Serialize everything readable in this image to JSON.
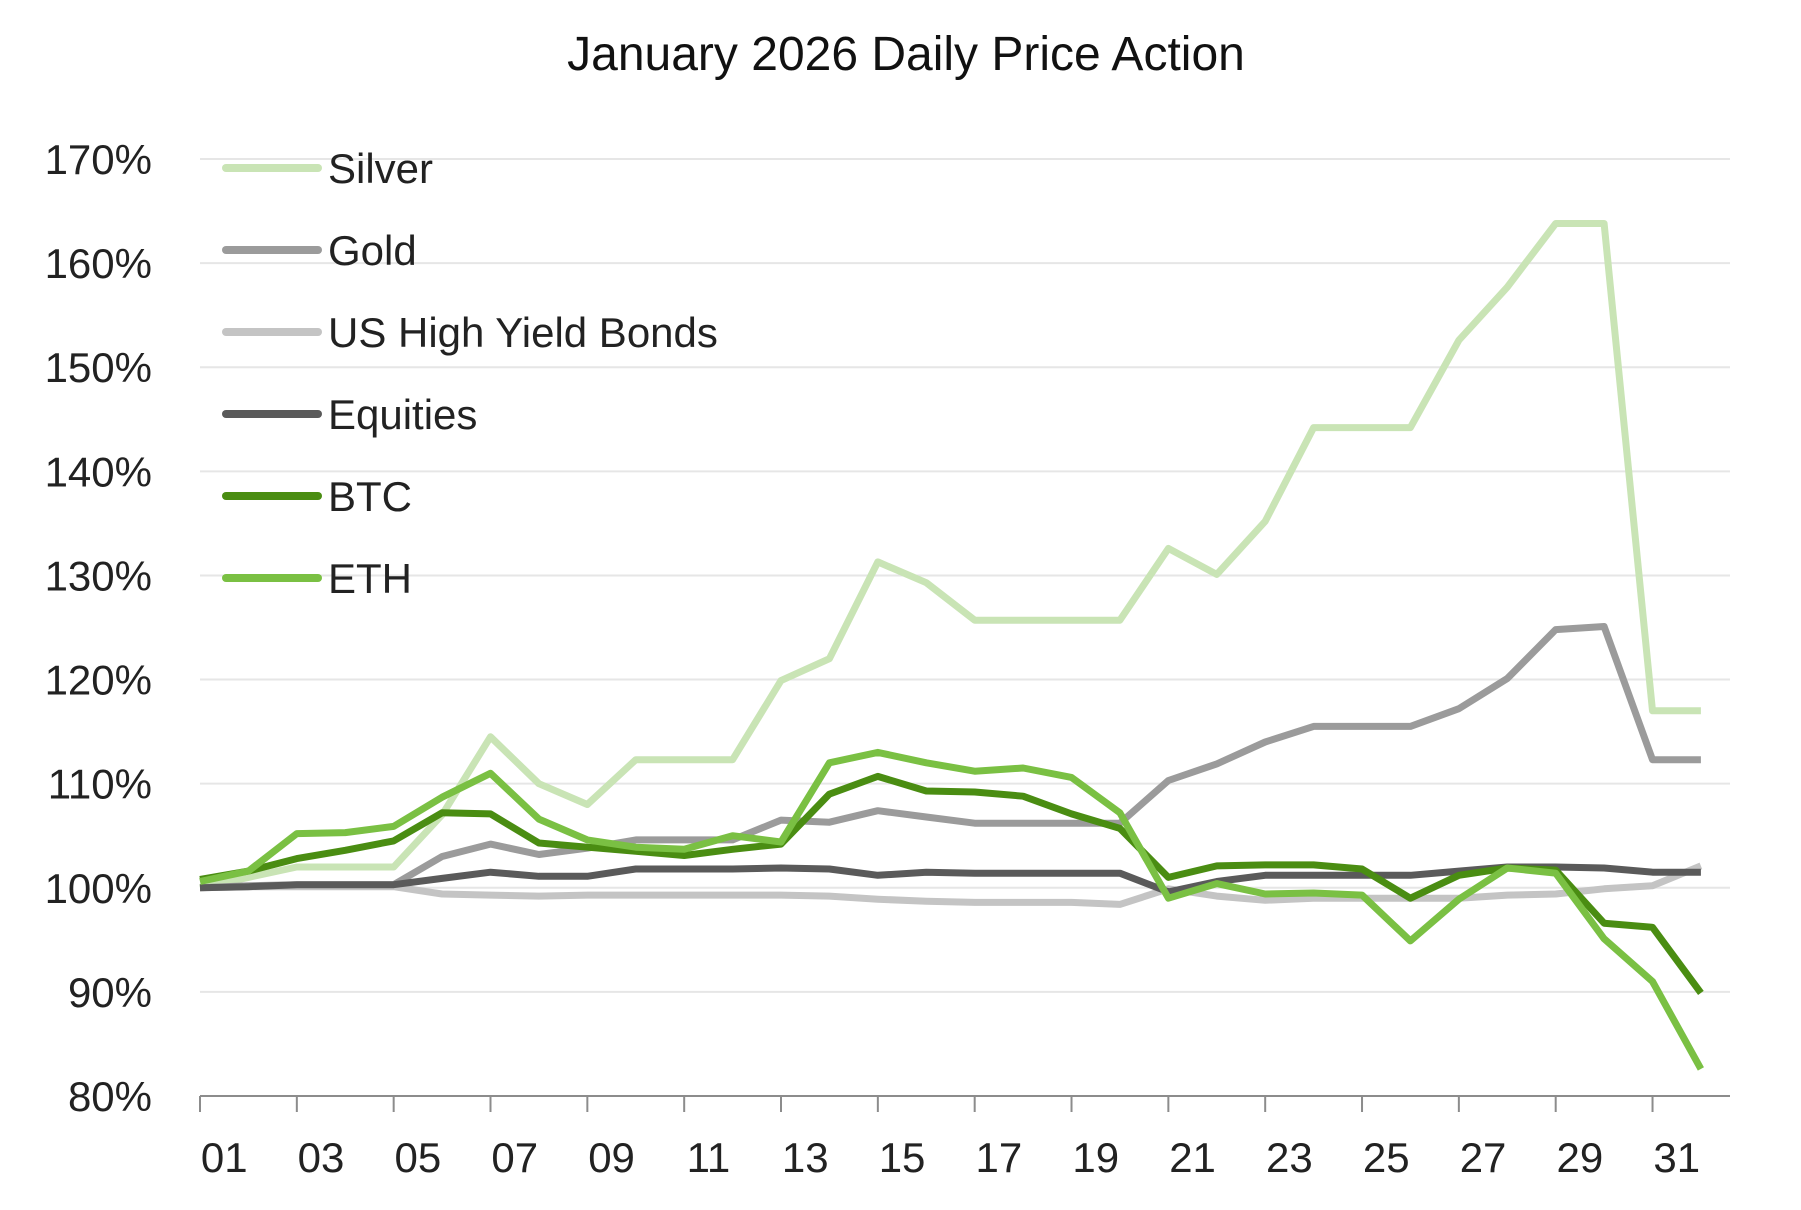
{
  "chart_data": {
    "type": "line",
    "title": "January 2026 Daily Price Action",
    "xlabel": "",
    "ylabel": "",
    "x": [
      1,
      2,
      3,
      4,
      5,
      6,
      7,
      8,
      9,
      10,
      11,
      12,
      13,
      14,
      15,
      16,
      17,
      18,
      19,
      20,
      21,
      22,
      23,
      24,
      25,
      26,
      27,
      28,
      29,
      30,
      31,
      32
    ],
    "x_tick_values": [
      1,
      3,
      5,
      7,
      9,
      11,
      13,
      15,
      17,
      19,
      21,
      23,
      25,
      27,
      29,
      31
    ],
    "x_tick_labels": [
      "01",
      "03",
      "05",
      "07",
      "09",
      "11",
      "13",
      "15",
      "17",
      "19",
      "21",
      "23",
      "25",
      "27",
      "29",
      "31"
    ],
    "xlim": [
      1,
      32.6
    ],
    "ylim": [
      80,
      170
    ],
    "y_ticks": [
      80,
      90,
      100,
      110,
      120,
      130,
      140,
      150,
      160,
      170
    ],
    "y_tick_labels": [
      "80%",
      "90%",
      "100%",
      "110%",
      "120%",
      "130%",
      "140%",
      "150%",
      "160%",
      "170%"
    ],
    "grid": "horizontal",
    "legend_position": "top-left",
    "series": [
      {
        "name": "Silver",
        "color": "#c9e4b5",
        "values": [
          100,
          101,
          102,
          102,
          102,
          107,
          114.5,
          110,
          108,
          112.3,
          112.3,
          112.3,
          119.9,
          122,
          131.3,
          129.3,
          125.7,
          125.7,
          125.7,
          125.7,
          132.6,
          130.1,
          135.2,
          144.2,
          144.2,
          144.2,
          152.6,
          157.7,
          163.8,
          163.8,
          117,
          117
        ]
      },
      {
        "name": "Gold",
        "color": "#9b9b9b",
        "values": [
          100,
          100.2,
          100.3,
          100.3,
          100.3,
          103,
          104.2,
          103.2,
          103.8,
          104.6,
          104.6,
          104.6,
          106.5,
          106.3,
          107.4,
          106.8,
          106.2,
          106.2,
          106.2,
          106.2,
          110.3,
          111.9,
          114,
          115.5,
          115.5,
          115.5,
          117.2,
          120.1,
          124.8,
          125.1,
          112.3,
          112.3
        ]
      },
      {
        "name": "US High Yield Bonds",
        "color": "#c4c4c4",
        "values": [
          100,
          100.1,
          100.1,
          100.1,
          100.1,
          99.4,
          99.3,
          99.2,
          99.3,
          99.3,
          99.3,
          99.3,
          99.3,
          99.2,
          98.9,
          98.7,
          98.6,
          98.6,
          98.6,
          98.4,
          99.9,
          99.2,
          98.8,
          99,
          99,
          99,
          99,
          99.3,
          99.4,
          99.9,
          100.2,
          102.1
        ]
      },
      {
        "name": "Equities",
        "color": "#5a5a5a",
        "values": [
          100,
          100.1,
          100.3,
          100.3,
          100.3,
          100.9,
          101.5,
          101.1,
          101.1,
          101.8,
          101.8,
          101.8,
          101.9,
          101.8,
          101.2,
          101.5,
          101.4,
          101.4,
          101.4,
          101.4,
          99.6,
          100.6,
          101.2,
          101.2,
          101.2,
          101.2,
          101.6,
          102,
          102,
          101.9,
          101.5,
          101.5
        ]
      },
      {
        "name": "BTC",
        "color": "#4a8d12",
        "values": [
          100.8,
          101.6,
          102.8,
          103.6,
          104.5,
          107.2,
          107.1,
          104.3,
          103.9,
          103.5,
          103.1,
          103.7,
          104.2,
          109,
          110.7,
          109.3,
          109.2,
          108.8,
          107.1,
          105.7,
          101,
          102.1,
          102.2,
          102.2,
          101.8,
          99,
          101.2,
          101.9,
          101.7,
          96.6,
          96.2,
          89.9
        ]
      },
      {
        "name": "ETH",
        "color": "#7ac043",
        "values": [
          100.6,
          101.6,
          105.2,
          105.3,
          105.9,
          108.7,
          111,
          106.6,
          104.6,
          103.9,
          103.7,
          105,
          104.4,
          112,
          113,
          112,
          111.2,
          111.5,
          110.6,
          107.2,
          99,
          100.4,
          99.4,
          99.5,
          99.3,
          94.9,
          98.9,
          101.9,
          101.4,
          95.1,
          91,
          82.6
        ]
      }
    ]
  }
}
